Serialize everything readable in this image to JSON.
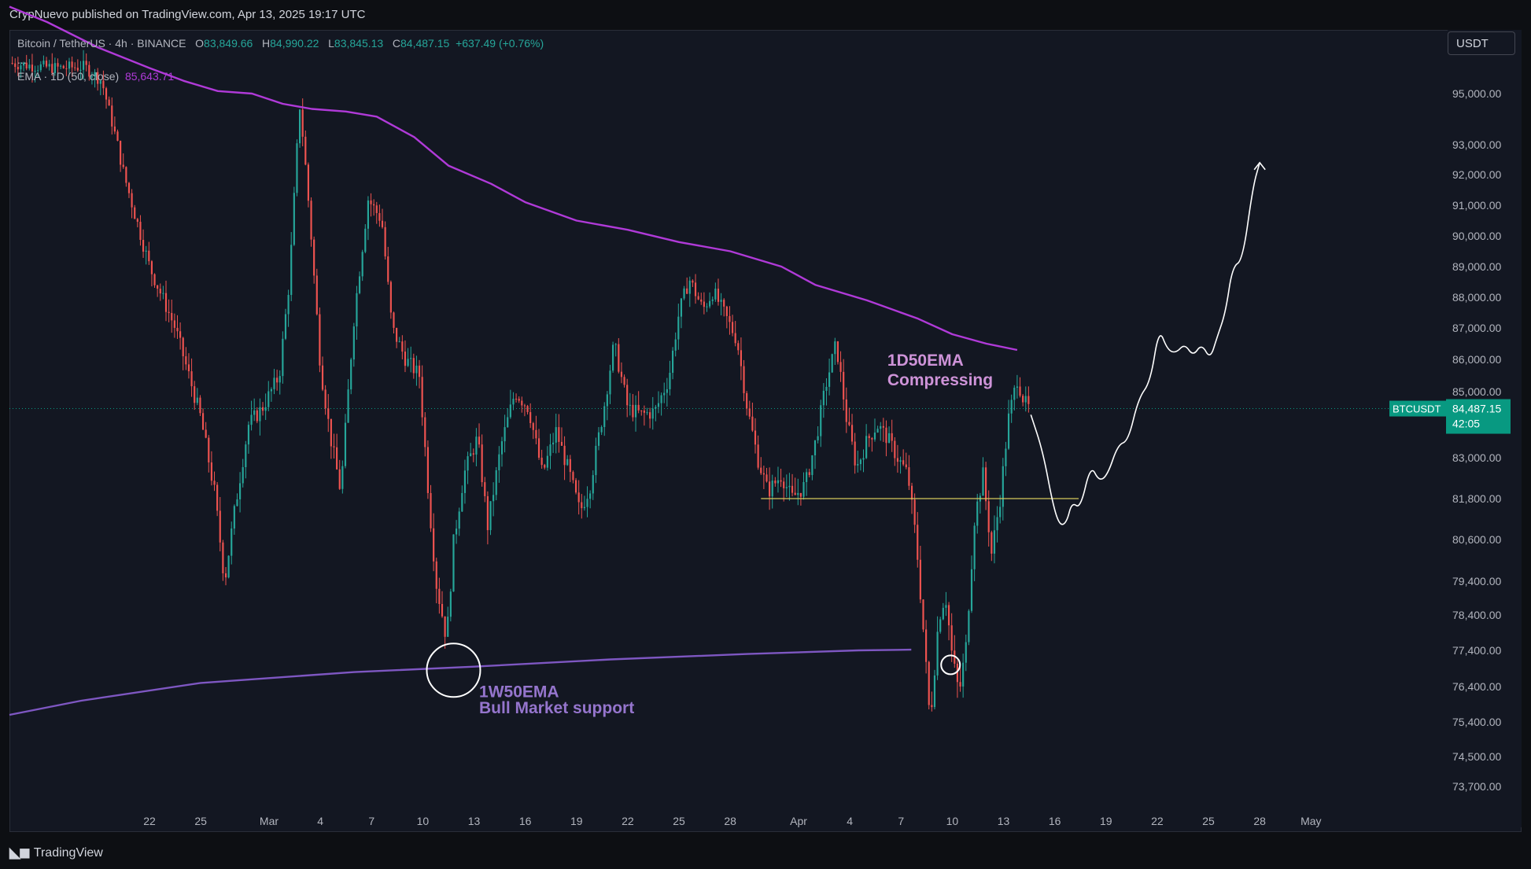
{
  "header": {
    "published": "CrypNuevo published on TradingView.com, Apr 13, 2025 19:17 UTC"
  },
  "legend": {
    "symbol": "Bitcoin / TetherUS · 4h · BINANCE",
    "o_label": "O",
    "o_value": "83,849.66",
    "h_label": "H",
    "h_value": "84,990.22",
    "l_label": "L",
    "l_value": "83,845.13",
    "c_label": "C",
    "c_value": "84,487.15",
    "change": "+637.49 (+0.76%)",
    "dots": "...",
    "ema_label": "EMA · 1D (50, close)",
    "ema_value": "85,643.71"
  },
  "currency_button": "USDT",
  "footer": {
    "brand": "TradingView"
  },
  "colors": {
    "background": "#131722",
    "up": "#26a69a",
    "down": "#ef5350",
    "ema_1d": "#b03ad8",
    "ema_1w": "#7e57c2",
    "support_line": "#d4c95c",
    "price_tag": "#089981"
  },
  "chart_data": {
    "type": "candlestick",
    "symbol": "BTCUSDT",
    "timeframe": "4h",
    "last_price": 84487.15,
    "last_price_label": "84,487.15",
    "countdown": "42:05",
    "ylim": [
      73200,
      96300
    ],
    "y_ticks": [
      95000,
      93000,
      92000,
      91000,
      90000,
      89000,
      88000,
      87000,
      86000,
      85000,
      83000,
      81800,
      80600,
      79400,
      78400,
      77400,
      76400,
      75400,
      74500,
      73700
    ],
    "y_tick_labels": [
      "95,000.00",
      "93,000.00",
      "92,000.00",
      "91,000.00",
      "90,000.00",
      "89,000.00",
      "88,000.00",
      "87,000.00",
      "86,000.00",
      "85,000.00",
      "83,000.00",
      "81,800.00",
      "80,600.00",
      "79,400.00",
      "78,400.00",
      "77,400.00",
      "76,400.00",
      "75,400.00",
      "74,500.00",
      "73,700.00"
    ],
    "x_range_days": [
      -15.2,
      69.0
    ],
    "x_ticks": [
      {
        "label": "22",
        "day": -7
      },
      {
        "label": "25",
        "day": -4
      },
      {
        "label": "Mar",
        "day": 0
      },
      {
        "label": "4",
        "day": 3
      },
      {
        "label": "7",
        "day": 6
      },
      {
        "label": "10",
        "day": 9
      },
      {
        "label": "13",
        "day": 12
      },
      {
        "label": "16",
        "day": 15
      },
      {
        "label": "19",
        "day": 18
      },
      {
        "label": "22",
        "day": 21
      },
      {
        "label": "25",
        "day": 24
      },
      {
        "label": "28",
        "day": 27
      },
      {
        "label": "Apr",
        "day": 31
      },
      {
        "label": "4",
        "day": 34
      },
      {
        "label": "7",
        "day": 37
      },
      {
        "label": "10",
        "day": 40
      },
      {
        "label": "13",
        "day": 43
      },
      {
        "label": "16",
        "day": 46
      },
      {
        "label": "19",
        "day": 49
      },
      {
        "label": "22",
        "day": 52
      },
      {
        "label": "25",
        "day": 55
      },
      {
        "label": "28",
        "day": 58
      },
      {
        "label": "May",
        "day": 61
      }
    ],
    "price_path": [
      [
        -15.2,
        96200
      ],
      [
        -14,
        96100
      ],
      [
        -12.5,
        96000
      ],
      [
        -10.8,
        96050
      ],
      [
        -9.8,
        95500
      ],
      [
        -8.5,
        92000
      ],
      [
        -7,
        89000
      ],
      [
        -5.5,
        87000
      ],
      [
        -4,
        84200
      ],
      [
        -3.2,
        82000
      ],
      [
        -2.6,
        79400
      ],
      [
        -2,
        81500
      ],
      [
        -1.2,
        84000
      ],
      [
        -0.4,
        84500
      ],
      [
        0.6,
        85500
      ],
      [
        1.2,
        88600
      ],
      [
        1.8,
        94500
      ],
      [
        2.4,
        90500
      ],
      [
        3.0,
        85800
      ],
      [
        3.6,
        83600
      ],
      [
        4.2,
        82000
      ],
      [
        5.0,
        87500
      ],
      [
        5.8,
        91200
      ],
      [
        6.6,
        90500
      ],
      [
        7.2,
        87000
      ],
      [
        8.0,
        86000
      ],
      [
        8.8,
        85500
      ],
      [
        9.4,
        81500
      ],
      [
        9.8,
        79300
      ],
      [
        10.4,
        77700
      ],
      [
        10.8,
        80500
      ],
      [
        11.4,
        82500
      ],
      [
        12.2,
        83600
      ],
      [
        12.8,
        81000
      ],
      [
        13.6,
        83400
      ],
      [
        14.4,
        85000
      ],
      [
        15.2,
        84500
      ],
      [
        16.0,
        82500
      ],
      [
        16.8,
        83800
      ],
      [
        17.6,
        82500
      ],
      [
        18.2,
        81400
      ],
      [
        18.8,
        82200
      ],
      [
        19.6,
        84500
      ],
      [
        20.2,
        86500
      ],
      [
        21.0,
        84500
      ],
      [
        21.8,
        84300
      ],
      [
        22.6,
        84400
      ],
      [
        23.4,
        85400
      ],
      [
        24.0,
        87500
      ],
      [
        24.6,
        88600
      ],
      [
        25.4,
        87600
      ],
      [
        26.0,
        88200
      ],
      [
        26.8,
        87300
      ],
      [
        27.4,
        86600
      ],
      [
        28.0,
        84500
      ],
      [
        28.6,
        83000
      ],
      [
        29.2,
        82000
      ],
      [
        30.0,
        82500
      ],
      [
        30.6,
        81800
      ],
      [
        31.4,
        82200
      ],
      [
        32.0,
        83500
      ],
      [
        32.6,
        85200
      ],
      [
        33.2,
        86500
      ],
      [
        33.8,
        84200
      ],
      [
        34.4,
        82700
      ],
      [
        35.0,
        83500
      ],
      [
        35.6,
        84000
      ],
      [
        36.2,
        83600
      ],
      [
        36.8,
        83000
      ],
      [
        37.4,
        82500
      ],
      [
        37.9,
        80500
      ],
      [
        38.3,
        78000
      ],
      [
        38.7,
        75400
      ],
      [
        39.2,
        78300
      ],
      [
        39.6,
        79000
      ],
      [
        40.0,
        77200
      ],
      [
        40.4,
        76200
      ],
      [
        40.8,
        77500
      ],
      [
        41.3,
        81200
      ],
      [
        41.8,
        82500
      ],
      [
        42.3,
        80200
      ],
      [
        42.8,
        81800
      ],
      [
        43.3,
        84200
      ],
      [
        43.8,
        85400
      ],
      [
        44.2,
        84700
      ],
      [
        44.6,
        84400
      ]
    ],
    "ema_1d": {
      "name": "EMA 1D 50",
      "points": [
        [
          -15.2,
          98400
        ],
        [
          -13,
          97800
        ],
        [
          -10,
          96800
        ],
        [
          -7,
          96000
        ],
        [
          -5,
          95500
        ],
        [
          -3,
          95100
        ],
        [
          -1,
          95000
        ],
        [
          0.8,
          94600
        ],
        [
          2.5,
          94400
        ],
        [
          4.5,
          94300
        ],
        [
          6.3,
          94100
        ],
        [
          8.5,
          93300
        ],
        [
          10.5,
          92300
        ],
        [
          13,
          91700
        ],
        [
          15,
          91100
        ],
        [
          18,
          90500
        ],
        [
          21,
          90200
        ],
        [
          24,
          89800
        ],
        [
          27,
          89500
        ],
        [
          30,
          89000
        ],
        [
          32,
          88400
        ],
        [
          35,
          87900
        ],
        [
          38,
          87300
        ],
        [
          40,
          86800
        ],
        [
          42,
          86500
        ],
        [
          43.8,
          86300
        ]
      ]
    },
    "ema_1w": {
      "name": "EMA 1W 50",
      "points": [
        [
          -15.2,
          75600
        ],
        [
          -11,
          76000
        ],
        [
          -4,
          76500
        ],
        [
          5,
          76800
        ],
        [
          12,
          76950
        ],
        [
          20,
          77150
        ],
        [
          28,
          77300
        ],
        [
          34.5,
          77400
        ],
        [
          37.6,
          77420
        ]
      ]
    },
    "support_line": {
      "value": 81800,
      "from_day": 28.8,
      "to_day": 47.4
    },
    "projection": [
      [
        44.6,
        84300
      ],
      [
        45.3,
        83200
      ],
      [
        45.9,
        81600
      ],
      [
        46.3,
        81000
      ],
      [
        46.7,
        81100
      ],
      [
        47.0,
        81700
      ],
      [
        47.5,
        81500
      ],
      [
        48.1,
        82800
      ],
      [
        48.6,
        82300
      ],
      [
        49.1,
        82500
      ],
      [
        49.7,
        83400
      ],
      [
        50.3,
        83500
      ],
      [
        50.9,
        84800
      ],
      [
        51.6,
        85300
      ],
      [
        52.1,
        87000
      ],
      [
        52.6,
        86300
      ],
      [
        53.1,
        86200
      ],
      [
        53.6,
        86500
      ],
      [
        54.1,
        86100
      ],
      [
        54.6,
        86500
      ],
      [
        55.1,
        86000
      ],
      [
        55.5,
        86700
      ],
      [
        56.0,
        87500
      ],
      [
        56.4,
        89000
      ],
      [
        57.0,
        89200
      ],
      [
        57.6,
        91600
      ],
      [
        58.0,
        92400
      ]
    ],
    "circles": [
      {
        "day": 10.8,
        "price": 76850
      },
      {
        "day": 39.9,
        "price": 77000
      }
    ],
    "annotations": [
      {
        "text": "1D50EMA",
        "day": 36.2,
        "price": 85800
      },
      {
        "text": "Compressing",
        "day": 36.2,
        "price": 85200
      },
      {
        "text": "1W50EMA",
        "day": 12.3,
        "price": 76100
      },
      {
        "text": "Bull Market support",
        "day": 12.3,
        "price": 75650
      }
    ]
  }
}
